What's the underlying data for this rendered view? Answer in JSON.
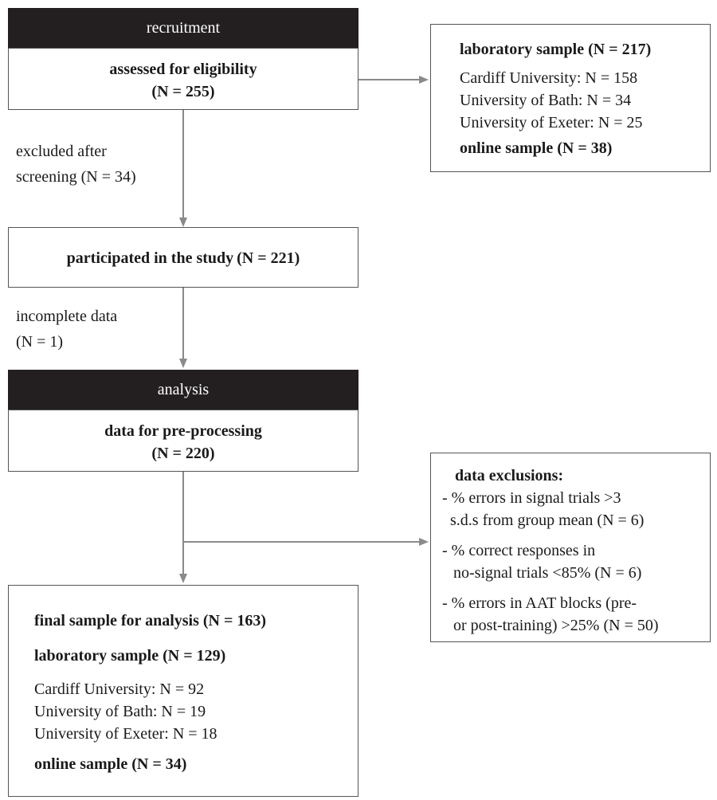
{
  "headers": {
    "recruitment": "recruitment",
    "analysis": "analysis"
  },
  "assessed": {
    "title": "assessed for eligibility",
    "count": "(N = 255)"
  },
  "lab_box_top": {
    "lab_title": "laboratory sample",
    "lab_count": "(N = 217)",
    "lines": [
      "Cardiff University: N = 158",
      "University of Bath: N = 34",
      "University of Exeter: N = 25"
    ],
    "online_title": "online sample",
    "online_count": "(N = 38)"
  },
  "excluded_note": {
    "line1": "excluded after",
    "line2": "screening (N = 34)"
  },
  "participated": {
    "title": "participated in the study",
    "count": "(N = 221)"
  },
  "incomplete_note": {
    "line1": "incomplete data",
    "line2": "(N = 1)"
  },
  "preprocessing": {
    "title": "data for pre-processing",
    "count": "(N = 220)"
  },
  "exclusions": {
    "title": "data exclusions:",
    "items": [
      [
        "- % errors in signal trials >3",
        "s.d.s from group mean (N = 6)"
      ],
      [
        "- % correct responses in",
        "no-signal trials <85% (N = 6)"
      ],
      [
        "- % errors in AAT blocks (pre-",
        "or post-training) >25% (N = 50)"
      ]
    ]
  },
  "final": {
    "title": "final sample for analysis",
    "count": "(N = 163)",
    "lab_title": "laboratory sample",
    "lab_count": "(N = 129)",
    "lines": [
      "Cardiff University: N = 92",
      "University of Bath: N = 19",
      "University of Exeter: N = 18"
    ],
    "online_title": "online sample",
    "online_count": "(N = 34)"
  },
  "colors": {
    "header_bg": "#231f20",
    "arrow": "#8a8a8a",
    "border": "#555555"
  }
}
